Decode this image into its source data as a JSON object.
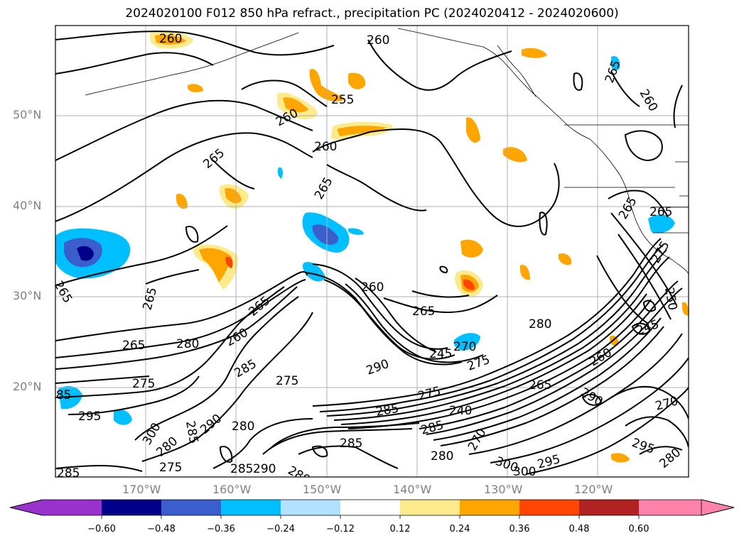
{
  "title": "2024020100 F012 850 hPa refract., precipitation PC (2024020412 - 2024020600)",
  "lat_labels": [
    "50°N",
    "40°N",
    "30°N",
    "20°N"
  ],
  "lon_labels": [
    "170°W",
    "160°W",
    "150°W",
    "140°W",
    "130°W",
    "120°W"
  ],
  "colorbar": {
    "ticks": [
      "−0.60",
      "−0.48",
      "−0.36",
      "−0.24",
      "−0.12",
      "0.12",
      "0.24",
      "0.36",
      "0.48",
      "0.60"
    ],
    "colors": [
      "#9932cc",
      "#00008b",
      "#3a5fcd",
      "#00bfff",
      "#b0e2ff",
      "#ffffff",
      "#fdea8c",
      "#ffa500",
      "#ff4500",
      "#b22222",
      "#ff82ab"
    ]
  },
  "contour_labels": [
    "260",
    "260",
    "255",
    "260",
    "260",
    "265",
    "265",
    "265",
    "265",
    "265",
    "260",
    "260",
    "265",
    "265",
    "265",
    "265",
    "280",
    "260",
    "265",
    "275",
    "275",
    "285",
    "275",
    "280",
    "295",
    "285",
    "300",
    "280",
    "280",
    "275",
    "285",
    "290",
    "280",
    "285",
    "290",
    "285",
    "275",
    "285",
    "240",
    "285",
    "245",
    "290",
    "270",
    "300",
    "295",
    "300",
    "290",
    "295",
    "280",
    "275",
    "270",
    "265",
    "270",
    "260",
    "245",
    "250",
    "280",
    "285"
  ]
}
